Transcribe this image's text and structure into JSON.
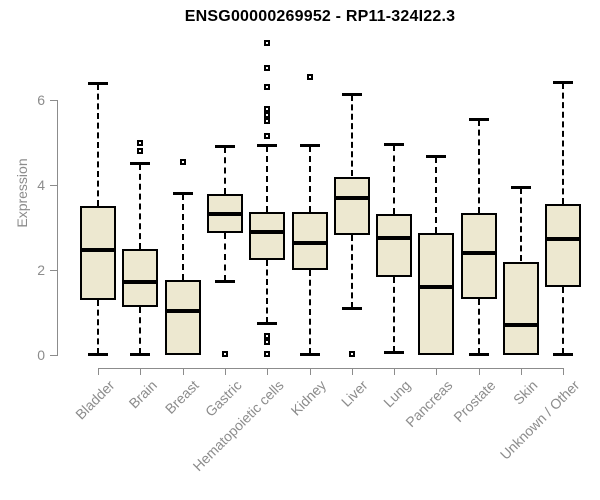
{
  "page": {
    "background": "#ffffff"
  },
  "chart_data": {
    "type": "boxplot",
    "title": "ENSG00000269952 - RP11-324I22.3",
    "ylabel": "Expression",
    "xlabel": "",
    "ylim": [
      0,
      7.5
    ],
    "yticks": [
      0,
      2,
      4,
      6
    ],
    "grid": false,
    "legend": "none",
    "categories": [
      "Bladder",
      "Brain",
      "Breast",
      "Gastric",
      "Hematopoietic cells",
      "Kidney",
      "Liver",
      "Lung",
      "Pancreas",
      "Prostate",
      "Skin",
      "Unknown / Other"
    ],
    "series": [
      {
        "name": "Bladder",
        "whisker_low": 0.02,
        "q1": 1.29,
        "median": 2.47,
        "q3": 3.5,
        "whisker_high": 6.38,
        "outliers": []
      },
      {
        "name": "Brain",
        "whisker_low": 0.02,
        "q1": 1.13,
        "median": 1.72,
        "q3": 2.5,
        "whisker_high": 4.5,
        "outliers": [
          4.8,
          5.0
        ]
      },
      {
        "name": "Breast",
        "whisker_low": 0,
        "q1": 0,
        "median": 1.03,
        "q3": 1.77,
        "whisker_high": 3.8,
        "outliers": [
          4.55
        ]
      },
      {
        "name": "Gastric",
        "whisker_low": 1.75,
        "q1": 2.87,
        "median": 3.32,
        "q3": 3.8,
        "whisker_high": 4.9,
        "outliers": [
          0.02
        ]
      },
      {
        "name": "Hematopoietic cells",
        "whisker_low": 0.75,
        "q1": 2.24,
        "median": 2.9,
        "q3": 3.37,
        "whisker_high": 4.92,
        "outliers": [
          7.35,
          6.75,
          6.3,
          5.8,
          5.65,
          5.5,
          5.15,
          0.45,
          0.3,
          0.02
        ]
      },
      {
        "name": "Kidney",
        "whisker_low": 0.03,
        "q1": 2.0,
        "median": 2.63,
        "q3": 3.37,
        "whisker_high": 4.92,
        "outliers": [
          6.55
        ]
      },
      {
        "name": "Liver",
        "whisker_low": 1.1,
        "q1": 2.82,
        "median": 3.69,
        "q3": 4.2,
        "whisker_high": 6.12,
        "outliers": [
          0.02
        ]
      },
      {
        "name": "Lung",
        "whisker_low": 0.08,
        "q1": 1.84,
        "median": 2.75,
        "q3": 3.32,
        "whisker_high": 4.93,
        "outliers": []
      },
      {
        "name": "Pancreas",
        "whisker_low": 0,
        "q1": 0,
        "median": 1.59,
        "q3": 2.88,
        "whisker_high": 4.67,
        "outliers": []
      },
      {
        "name": "Prostate",
        "whisker_low": 0.02,
        "q1": 1.31,
        "median": 2.39,
        "q3": 3.33,
        "whisker_high": 5.53,
        "outliers": []
      },
      {
        "name": "Skin",
        "whisker_low": 0,
        "q1": 0,
        "median": 0.71,
        "q3": 2.2,
        "whisker_high": 3.92,
        "outliers": []
      },
      {
        "name": "Unknown / Other",
        "whisker_low": 0.02,
        "q1": 1.61,
        "median": 2.72,
        "q3": 3.55,
        "whisker_high": 6.4,
        "outliers": []
      }
    ],
    "colors": {
      "box_fill": "#EDE8D0",
      "box_border": "#000000",
      "median": "#000000",
      "whisker": "#000000",
      "outlier": "#000000",
      "axis": "#8C8C8C",
      "tick_label": "#8C8C8C",
      "title": "#000000"
    }
  }
}
